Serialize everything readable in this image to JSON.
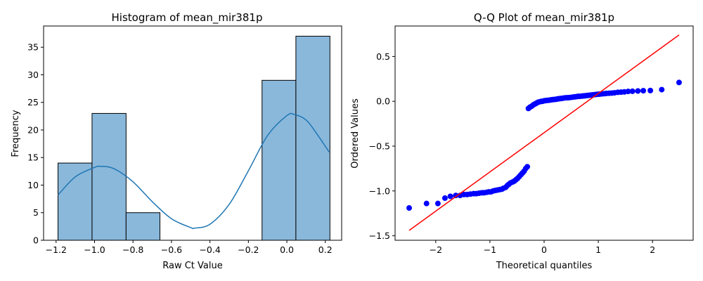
{
  "chart_data": [
    {
      "type": "bar",
      "title": "Histogram of mean_mir381p",
      "xlabel": "Raw Ct Value",
      "ylabel": "Frequency",
      "xlim": [
        -1.265,
        0.285
      ],
      "ylim": [
        0,
        38.85
      ],
      "xticks": [
        -1.2,
        -1.0,
        -0.8,
        -0.6,
        -0.4,
        -0.2,
        0.0,
        0.2
      ],
      "xtick_labels": [
        "−1.2",
        "−1.0",
        "−0.8",
        "−0.6",
        "−0.4",
        "−0.2",
        "0.0",
        "0.2"
      ],
      "yticks": [
        0,
        5,
        10,
        15,
        20,
        25,
        30,
        35
      ],
      "ytick_labels": [
        "0",
        "5",
        "10",
        "15",
        "20",
        "25",
        "30",
        "35"
      ],
      "bins": [
        {
          "x0": -1.19,
          "x1": -1.013,
          "count": 14
        },
        {
          "x0": -1.013,
          "x1": -0.836,
          "count": 23
        },
        {
          "x0": -0.836,
          "x1": -0.66,
          "count": 5
        },
        {
          "x0": -0.66,
          "x1": -0.483,
          "count": 0
        },
        {
          "x0": -0.483,
          "x1": -0.306,
          "count": 0
        },
        {
          "x0": -0.306,
          "x1": -0.129,
          "count": 0
        },
        {
          "x0": -0.129,
          "x1": 0.047,
          "count": 29
        },
        {
          "x0": 0.047,
          "x1": 0.224,
          "count": 37
        }
      ],
      "kde": {
        "x": [
          -1.19,
          -1.1,
          -1.0,
          -0.97,
          -0.9,
          -0.8,
          -0.7,
          -0.6,
          -0.5,
          -0.48,
          -0.4,
          -0.3,
          -0.2,
          -0.1,
          0.0,
          0.04,
          0.1,
          0.15,
          0.22
        ],
        "y": [
          8.2,
          11.5,
          13.2,
          13.4,
          13.0,
          10.6,
          7.0,
          3.9,
          2.3,
          2.2,
          2.9,
          6.5,
          12.6,
          19.0,
          22.6,
          22.8,
          21.8,
          19.6,
          16.0
        ]
      },
      "bar_color": "#8ab8db",
      "line_color": "#1f77b4",
      "grid": false
    },
    {
      "type": "scatter",
      "title": "Q-Q Plot of mean_mir381p",
      "xlabel": "Theoretical quantiles",
      "ylabel": "Ordered Values",
      "xlim": [
        -2.75,
        2.75
      ],
      "ylim": [
        -1.55,
        0.84
      ],
      "xticks": [
        -2,
        -1,
        0,
        1,
        2
      ],
      "xtick_labels": [
        "−2",
        "−1",
        "0",
        "1",
        "2"
      ],
      "yticks": [
        -1.5,
        -1.0,
        -0.5,
        0.0,
        0.5
      ],
      "ytick_labels": [
        "−1.5",
        "−1.0",
        "−0.5",
        "0.0",
        "0.5"
      ],
      "points": [
        [
          -2.49,
          -1.19
        ],
        [
          -2.17,
          -1.14
        ],
        [
          -1.96,
          -1.14
        ],
        [
          -1.83,
          -1.08
        ],
        [
          -1.73,
          -1.06
        ],
        [
          -1.63,
          -1.05
        ],
        [
          -1.55,
          -1.05
        ],
        [
          -1.48,
          -1.04
        ],
        [
          -1.42,
          -1.04
        ],
        [
          -1.36,
          -1.035
        ],
        [
          -1.3,
          -1.03
        ],
        [
          -1.25,
          -1.03
        ],
        [
          -1.2,
          -1.025
        ],
        [
          -1.15,
          -1.02
        ],
        [
          -1.11,
          -1.02
        ],
        [
          -1.06,
          -1.015
        ],
        [
          -1.02,
          -1.01
        ],
        [
          -0.98,
          -1.01
        ],
        [
          -0.94,
          -1.0
        ],
        [
          -0.9,
          -0.995
        ],
        [
          -0.86,
          -0.99
        ],
        [
          -0.82,
          -0.985
        ],
        [
          -0.78,
          -0.98
        ],
        [
          -0.75,
          -0.97
        ],
        [
          -0.71,
          -0.96
        ],
        [
          -0.68,
          -0.94
        ],
        [
          -0.65,
          -0.925
        ],
        [
          -0.62,
          -0.91
        ],
        [
          -0.58,
          -0.9
        ],
        [
          -0.55,
          -0.89
        ],
        [
          -0.52,
          -0.875
        ],
        [
          -0.49,
          -0.86
        ],
        [
          -0.46,
          -0.84
        ],
        [
          -0.43,
          -0.82
        ],
        [
          -0.4,
          -0.8
        ],
        [
          -0.37,
          -0.78
        ],
        [
          -0.34,
          -0.75
        ],
        [
          -0.31,
          -0.73
        ],
        [
          -0.29,
          -0.08
        ],
        [
          -0.26,
          -0.065
        ],
        [
          -0.23,
          -0.055
        ],
        [
          -0.2,
          -0.04
        ],
        [
          -0.17,
          -0.03
        ],
        [
          -0.14,
          -0.02
        ],
        [
          -0.11,
          -0.01
        ],
        [
          -0.08,
          -0.005
        ],
        [
          -0.05,
          0.0
        ],
        [
          -0.03,
          0.0
        ],
        [
          0.0,
          0.005
        ],
        [
          0.03,
          0.008
        ],
        [
          0.06,
          0.01
        ],
        [
          0.09,
          0.012
        ],
        [
          0.12,
          0.015
        ],
        [
          0.15,
          0.018
        ],
        [
          0.18,
          0.02
        ],
        [
          0.21,
          0.022
        ],
        [
          0.24,
          0.025
        ],
        [
          0.26,
          0.028
        ],
        [
          0.29,
          0.03
        ],
        [
          0.32,
          0.032
        ],
        [
          0.35,
          0.035
        ],
        [
          0.38,
          0.038
        ],
        [
          0.41,
          0.04
        ],
        [
          0.44,
          0.04
        ],
        [
          0.47,
          0.042
        ],
        [
          0.51,
          0.045
        ],
        [
          0.54,
          0.048
        ],
        [
          0.57,
          0.05
        ],
        [
          0.6,
          0.052
        ],
        [
          0.63,
          0.055
        ],
        [
          0.66,
          0.055
        ],
        [
          0.7,
          0.058
        ],
        [
          0.73,
          0.06
        ],
        [
          0.76,
          0.062
        ],
        [
          0.8,
          0.065
        ],
        [
          0.83,
          0.067
        ],
        [
          0.87,
          0.07
        ],
        [
          0.9,
          0.072
        ],
        [
          0.94,
          0.075
        ],
        [
          0.98,
          0.078
        ],
        [
          1.02,
          0.08
        ],
        [
          1.06,
          0.082
        ],
        [
          1.11,
          0.085
        ],
        [
          1.15,
          0.088
        ],
        [
          1.2,
          0.09
        ],
        [
          1.25,
          0.092
        ],
        [
          1.3,
          0.095
        ],
        [
          1.36,
          0.1
        ],
        [
          1.42,
          0.102
        ],
        [
          1.48,
          0.105
        ],
        [
          1.55,
          0.11
        ],
        [
          1.63,
          0.112
        ],
        [
          1.73,
          0.115
        ],
        [
          1.83,
          0.118
        ],
        [
          1.96,
          0.12
        ],
        [
          2.17,
          0.13
        ],
        [
          2.49,
          0.21
        ]
      ],
      "fit_line": {
        "x": [
          -2.49,
          2.49
        ],
        "y": [
          -1.44,
          0.74
        ]
      },
      "point_color": "#0000ff",
      "line_color": "#ff0000",
      "grid": false
    }
  ]
}
